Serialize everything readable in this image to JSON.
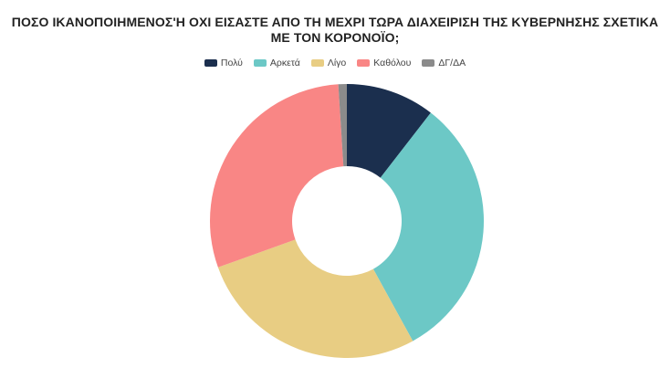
{
  "chart_data": {
    "type": "pie",
    "donut": true,
    "title_lines": [
      "ΠΟΣΟ ΙΚΑΝΟΠΟΙΗΜΕΝΟΣ'Η ΟΧΙ ΕΙΣΑΣΤΕ ΑΠΟ ΤΗ ΜΕΧΡΙ ΤΩΡΑ ΔΙΑΧΕΙΡΙΣΗ ΤΗΣ ΚΥΒΕΡΝΗΣΗΣ ΣΧΕΤΙΚΑ",
      "ΜΕ ΤΟΝ ΚΟΡΟΝΟΪΟ;"
    ],
    "legend_position": "top",
    "categories": [
      "Πολύ",
      "Αρκετά",
      "Λίγο",
      "Καθόλου",
      "ΔΓ/ΔΑ"
    ],
    "values": [
      10.5,
      31.5,
      27.5,
      29.5,
      1.0
    ],
    "colors": [
      "#1b2f4e",
      "#6cc8c6",
      "#e8cd83",
      "#f98685",
      "#8b8b8b"
    ]
  }
}
